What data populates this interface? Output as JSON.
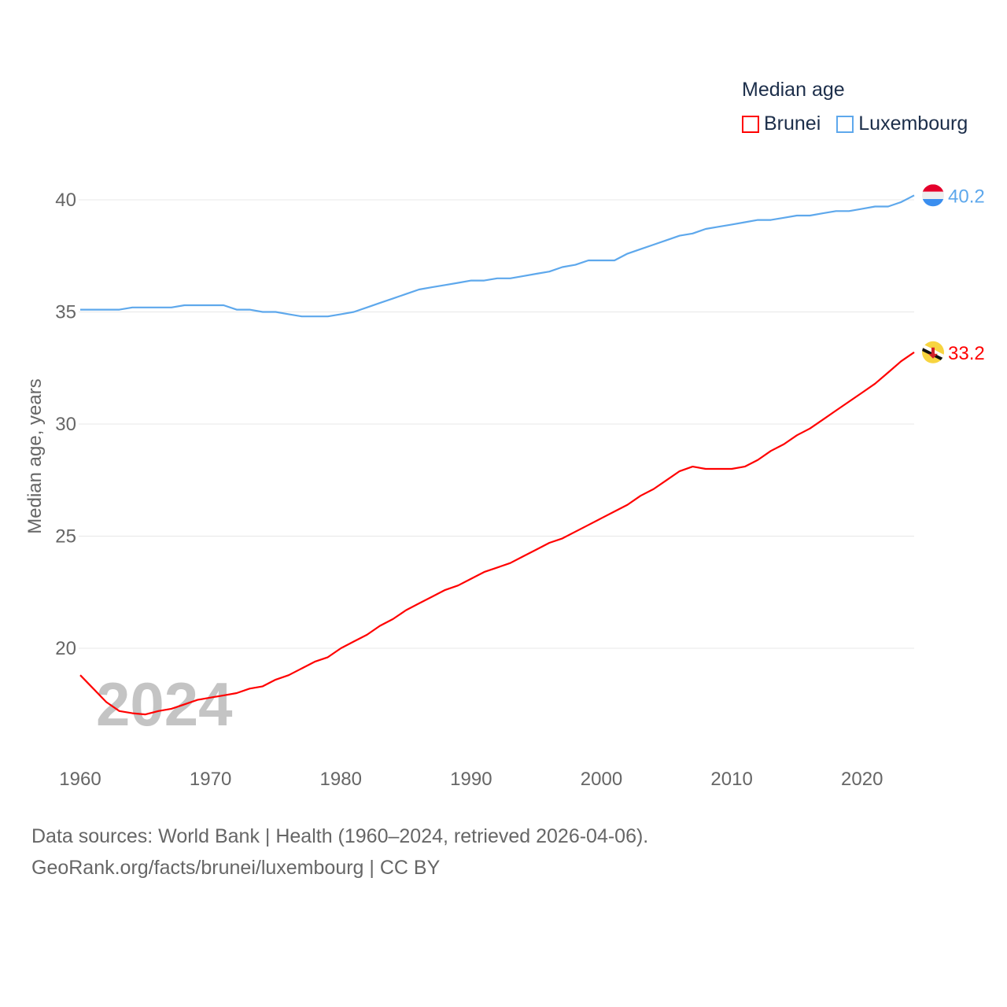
{
  "chart_data": {
    "type": "line",
    "title": "Median age",
    "ylabel": "Median age, years",
    "xlabel": "",
    "xlim": [
      1960,
      2024
    ],
    "ylim": [
      16,
      41
    ],
    "x_ticks": [
      1960,
      1970,
      1980,
      1990,
      2000,
      2010,
      2020
    ],
    "y_ticks": [
      20,
      25,
      30,
      35,
      40
    ],
    "grid": true,
    "legend_placement": "top-right",
    "year_watermark": "2024",
    "x": [
      1960,
      1961,
      1962,
      1963,
      1964,
      1965,
      1966,
      1967,
      1968,
      1969,
      1970,
      1971,
      1972,
      1973,
      1974,
      1975,
      1976,
      1977,
      1978,
      1979,
      1980,
      1981,
      1982,
      1983,
      1984,
      1985,
      1986,
      1987,
      1988,
      1989,
      1990,
      1991,
      1992,
      1993,
      1994,
      1995,
      1996,
      1997,
      1998,
      1999,
      2000,
      2001,
      2002,
      2003,
      2004,
      2005,
      2006,
      2007,
      2008,
      2009,
      2010,
      2011,
      2012,
      2013,
      2014,
      2015,
      2016,
      2017,
      2018,
      2019,
      2020,
      2021,
      2022,
      2023,
      2024
    ],
    "series": [
      {
        "name": "Brunei",
        "color": "#ff0000",
        "end_label": "33.2",
        "values": [
          18.8,
          18.2,
          17.6,
          17.2,
          17.1,
          17.05,
          17.2,
          17.3,
          17.5,
          17.7,
          17.8,
          17.9,
          18.0,
          18.2,
          18.3,
          18.6,
          18.8,
          19.1,
          19.4,
          19.6,
          20.0,
          20.3,
          20.6,
          21.0,
          21.3,
          21.7,
          22.0,
          22.3,
          22.6,
          22.8,
          23.1,
          23.4,
          23.6,
          23.8,
          24.1,
          24.4,
          24.7,
          24.9,
          25.2,
          25.5,
          25.8,
          26.1,
          26.4,
          26.8,
          27.1,
          27.5,
          27.9,
          28.1,
          28.0,
          28.0,
          28.0,
          28.1,
          28.4,
          28.8,
          29.1,
          29.5,
          29.8,
          30.2,
          30.6,
          31.0,
          31.4,
          31.8,
          32.3,
          32.8,
          33.2
        ]
      },
      {
        "name": "Luxembourg",
        "color": "#5ea8ec",
        "end_label": "40.2",
        "values": [
          35.1,
          35.1,
          35.1,
          35.1,
          35.2,
          35.2,
          35.2,
          35.2,
          35.3,
          35.3,
          35.3,
          35.3,
          35.1,
          35.1,
          35.0,
          35.0,
          34.9,
          34.8,
          34.8,
          34.8,
          34.9,
          35.0,
          35.2,
          35.4,
          35.6,
          35.8,
          36.0,
          36.1,
          36.2,
          36.3,
          36.4,
          36.4,
          36.5,
          36.5,
          36.6,
          36.7,
          36.8,
          37.0,
          37.1,
          37.3,
          37.3,
          37.3,
          37.6,
          37.8,
          38.0,
          38.2,
          38.4,
          38.5,
          38.7,
          38.8,
          38.9,
          39.0,
          39.1,
          39.1,
          39.2,
          39.3,
          39.3,
          39.4,
          39.5,
          39.5,
          39.6,
          39.7,
          39.7,
          39.9,
          40.2
        ]
      }
    ]
  },
  "footer": {
    "line1": "Data sources: World Bank | Health (1960–2024, retrieved 2026-04-06).",
    "line2": "GeoRank.org/facts/brunei/luxembourg | CC BY"
  }
}
